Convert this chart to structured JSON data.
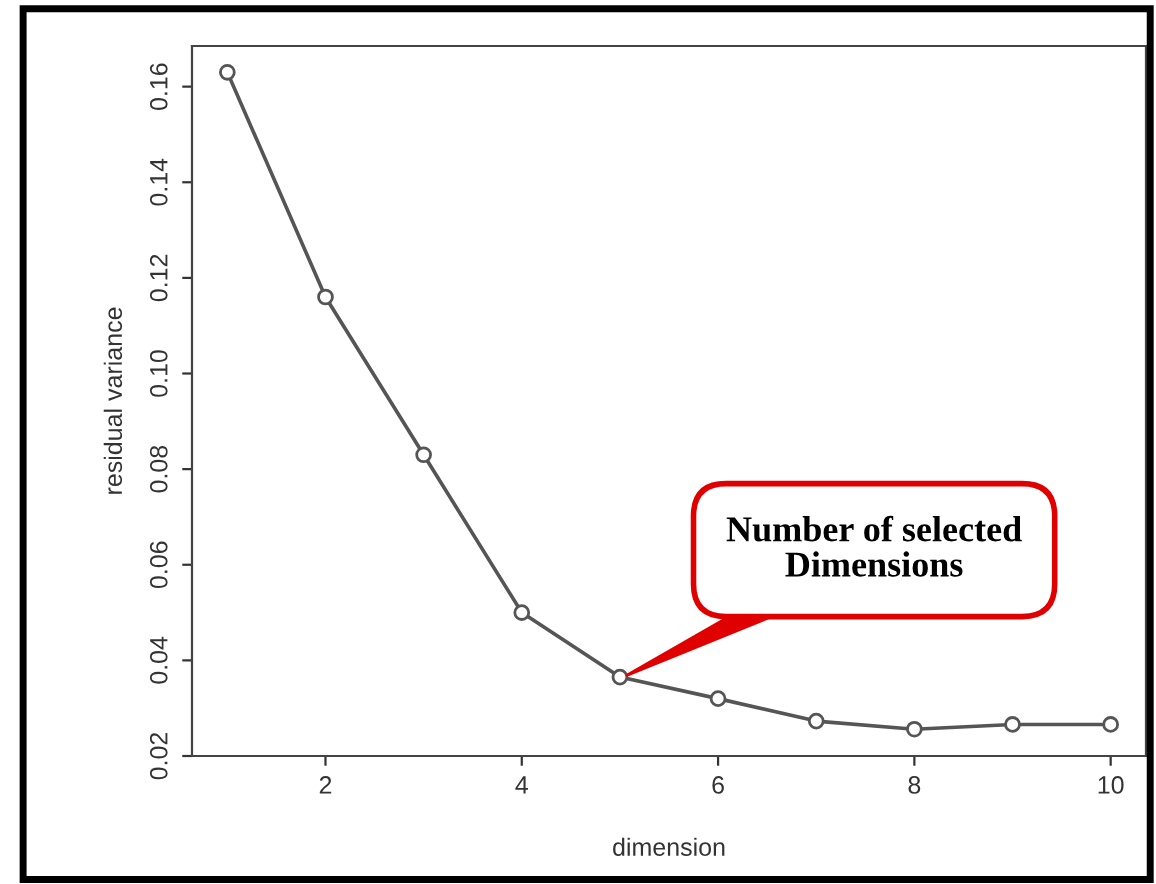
{
  "chart_data": {
    "type": "line",
    "xlabel": "dimension",
    "ylabel": "residual variance",
    "x": [
      1,
      2,
      3,
      4,
      5,
      6,
      7,
      8,
      9,
      10
    ],
    "series": [
      {
        "color": "#555555",
        "values": [
          0.163,
          0.116,
          0.083,
          0.05,
          0.0365,
          0.032,
          0.0273,
          0.0256,
          0.0266,
          0.0266
        ]
      }
    ],
    "xlim": [
      0.64,
      10.36
    ],
    "ylim": [
      0.02,
      0.1685
    ],
    "xticks": [
      2,
      4,
      6,
      8,
      10
    ],
    "yticks": [
      0.02,
      0.04,
      0.06,
      0.08,
      {
        "value": 0.1,
        "label": "0.10"
      },
      0.12,
      0.14,
      0.16
    ],
    "marker": "circle",
    "line_style": "solid",
    "grid": false,
    "legend": false,
    "annotations": [
      "Number of selected\nDimensions"
    ]
  }
}
